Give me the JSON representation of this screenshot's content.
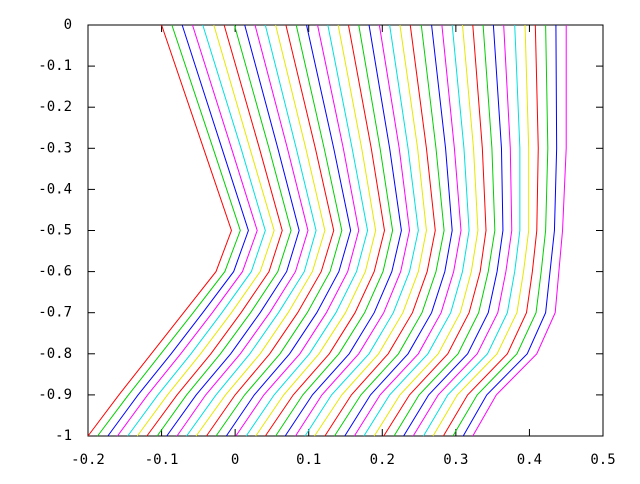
{
  "chart_data": {
    "type": "line",
    "xlim": [
      -0.2,
      0.5
    ],
    "ylim": [
      -1,
      0
    ],
    "xticks": [
      -0.2,
      -0.1,
      0,
      0.1,
      0.2,
      0.3,
      0.4,
      0.5
    ],
    "yticks": [
      0,
      -0.1,
      -0.2,
      -0.3,
      -0.4,
      -0.5,
      -0.6,
      -0.7,
      -0.8,
      -0.9,
      -1
    ],
    "y": [
      0,
      -0.3,
      -0.5,
      -0.6,
      -0.7,
      -0.8,
      -0.9,
      -1
    ],
    "series": [
      {
        "color": "#ff0000",
        "x": [
          -0.1,
          -0.043,
          -0.005,
          -0.026,
          -0.07,
          -0.114,
          -0.158,
          -0.2
        ]
      },
      {
        "color": "#00d000",
        "x": [
          -0.086,
          -0.03,
          0.007,
          -0.014,
          -0.057,
          -0.101,
          -0.145,
          -0.187
        ]
      },
      {
        "color": "#0000ff",
        "x": [
          -0.072,
          -0.018,
          0.018,
          -0.002,
          -0.044,
          -0.087,
          -0.132,
          -0.173
        ]
      },
      {
        "color": "#ff00ff",
        "x": [
          -0.058,
          -0.005,
          0.03,
          0.01,
          -0.031,
          -0.074,
          -0.119,
          -0.16
        ]
      },
      {
        "color": "#00e0e0",
        "x": [
          -0.044,
          0.008,
          0.041,
          0.022,
          -0.018,
          -0.06,
          -0.105,
          -0.146
        ]
      },
      {
        "color": "#e8e800",
        "x": [
          -0.029,
          0.02,
          0.053,
          0.034,
          -0.005,
          -0.047,
          -0.092,
          -0.133
        ]
      },
      {
        "color": "#ff0000",
        "x": [
          -0.015,
          0.033,
          0.064,
          0.046,
          0.008,
          -0.033,
          -0.079,
          -0.12
        ]
      },
      {
        "color": "#00d000",
        "x": [
          -0.001,
          0.046,
          0.076,
          0.058,
          0.021,
          -0.02,
          -0.066,
          -0.106
        ]
      },
      {
        "color": "#0000ff",
        "x": [
          0.013,
          0.058,
          0.087,
          0.07,
          0.034,
          -0.006,
          -0.053,
          -0.093
        ]
      },
      {
        "color": "#ff00ff",
        "x": [
          0.027,
          0.071,
          0.099,
          0.082,
          0.047,
          0.007,
          -0.04,
          -0.079
        ]
      },
      {
        "color": "#00e0e0",
        "x": [
          0.041,
          0.083,
          0.11,
          0.094,
          0.059,
          0.02,
          -0.026,
          -0.066
        ]
      },
      {
        "color": "#e8e800",
        "x": [
          0.055,
          0.096,
          0.122,
          0.105,
          0.072,
          0.034,
          -0.013,
          -0.053
        ]
      },
      {
        "color": "#ff0000",
        "x": [
          0.069,
          0.109,
          0.134,
          0.117,
          0.085,
          0.047,
          0,
          -0.039
        ]
      },
      {
        "color": "#00d000",
        "x": [
          0.083,
          0.121,
          0.145,
          0.129,
          0.098,
          0.061,
          0.013,
          -0.026
        ]
      },
      {
        "color": "#0000ff",
        "x": [
          0.097,
          0.134,
          0.157,
          0.141,
          0.111,
          0.074,
          0.026,
          -0.012
        ]
      },
      {
        "color": "#ff00ff",
        "x": [
          0.112,
          0.147,
          0.168,
          0.153,
          0.124,
          0.088,
          0.039,
          0.001
        ]
      },
      {
        "color": "#00e0e0",
        "x": [
          0.126,
          0.159,
          0.18,
          0.165,
          0.137,
          0.101,
          0.053,
          0.015
        ]
      },
      {
        "color": "#e8e800",
        "x": [
          0.14,
          0.172,
          0.191,
          0.177,
          0.15,
          0.114,
          0.066,
          0.028
        ]
      },
      {
        "color": "#ff0000",
        "x": [
          0.154,
          0.185,
          0.203,
          0.189,
          0.163,
          0.128,
          0.079,
          0.041
        ]
      },
      {
        "color": "#00d000",
        "x": [
          0.168,
          0.197,
          0.214,
          0.201,
          0.176,
          0.141,
          0.092,
          0.055
        ]
      },
      {
        "color": "#0000ff",
        "x": [
          0.182,
          0.21,
          0.226,
          0.213,
          0.189,
          0.155,
          0.105,
          0.068
        ]
      },
      {
        "color": "#ff00ff",
        "x": [
          0.196,
          0.223,
          0.237,
          0.225,
          0.202,
          0.168,
          0.118,
          0.082
        ]
      },
      {
        "color": "#00e0e0",
        "x": [
          0.21,
          0.235,
          0.249,
          0.237,
          0.215,
          0.182,
          0.131,
          0.095
        ]
      },
      {
        "color": "#e8e800",
        "x": [
          0.224,
          0.248,
          0.26,
          0.249,
          0.228,
          0.195,
          0.145,
          0.108
        ]
      },
      {
        "color": "#ff0000",
        "x": [
          0.238,
          0.26,
          0.272,
          0.261,
          0.241,
          0.208,
          0.158,
          0.122
        ]
      },
      {
        "color": "#00d000",
        "x": [
          0.253,
          0.273,
          0.284,
          0.273,
          0.254,
          0.222,
          0.171,
          0.135
        ]
      },
      {
        "color": "#0000ff",
        "x": [
          0.267,
          0.286,
          0.295,
          0.285,
          0.267,
          0.235,
          0.184,
          0.149
        ]
      },
      {
        "color": "#ff00ff",
        "x": [
          0.281,
          0.298,
          0.307,
          0.297,
          0.28,
          0.249,
          0.197,
          0.162
        ]
      },
      {
        "color": "#00e0e0",
        "x": [
          0.295,
          0.311,
          0.318,
          0.309,
          0.293,
          0.262,
          0.21,
          0.175
        ]
      },
      {
        "color": "#e8e800",
        "x": [
          0.309,
          0.324,
          0.33,
          0.321,
          0.306,
          0.276,
          0.224,
          0.189
        ]
      },
      {
        "color": "#ff0000",
        "x": [
          0.323,
          0.336,
          0.341,
          0.333,
          0.318,
          0.289,
          0.237,
          0.202
        ]
      },
      {
        "color": "#00d000",
        "x": [
          0.337,
          0.349,
          0.353,
          0.344,
          0.331,
          0.303,
          0.25,
          0.216
        ]
      },
      {
        "color": "#0000ff",
        "x": [
          0.351,
          0.362,
          0.364,
          0.356,
          0.344,
          0.316,
          0.263,
          0.229
        ]
      },
      {
        "color": "#ff00ff",
        "x": [
          0.365,
          0.374,
          0.376,
          0.368,
          0.357,
          0.329,
          0.276,
          0.242
        ]
      },
      {
        "color": "#00e0e0",
        "x": [
          0.38,
          0.387,
          0.387,
          0.38,
          0.37,
          0.343,
          0.289,
          0.256
        ]
      },
      {
        "color": "#e8e800",
        "x": [
          0.394,
          0.399,
          0.399,
          0.392,
          0.383,
          0.356,
          0.302,
          0.269
        ]
      },
      {
        "color": "#ff0000",
        "x": [
          0.408,
          0.412,
          0.41,
          0.404,
          0.396,
          0.37,
          0.316,
          0.283
        ]
      },
      {
        "color": "#00d000",
        "x": [
          0.422,
          0.425,
          0.422,
          0.416,
          0.409,
          0.383,
          0.329,
          0.296
        ]
      },
      {
        "color": "#0000ff",
        "x": [
          0.436,
          0.437,
          0.434,
          0.428,
          0.422,
          0.397,
          0.342,
          0.31
        ]
      },
      {
        "color": "#ff00ff",
        "x": [
          0.45,
          0.45,
          0.445,
          0.44,
          0.435,
          0.41,
          0.355,
          0.323
        ]
      }
    ]
  }
}
